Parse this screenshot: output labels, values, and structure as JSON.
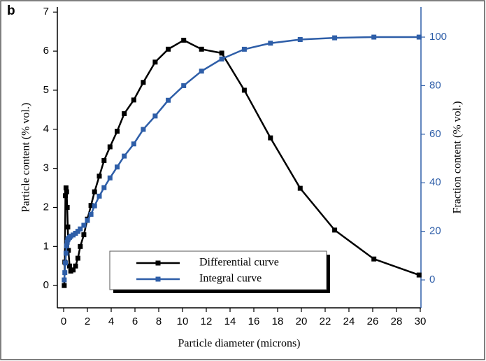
{
  "chart_data": {
    "type": "line",
    "panel_label": "b",
    "xlabel": "Particle diameter (microns)",
    "ylabel": "Particle content (% vol.)",
    "y2label": "Fraction content (% vol.)",
    "x": [
      0.05,
      0.1,
      0.15,
      0.2,
      0.25,
      0.3,
      0.35,
      0.4,
      0.5,
      0.6,
      0.8,
      1.0,
      1.2,
      1.4,
      1.7,
      2.0,
      2.3,
      2.6,
      3.0,
      3.4,
      3.9,
      4.5,
      5.1,
      5.9,
      6.7,
      7.7,
      8.8,
      10.1,
      11.6,
      13.3,
      15.2,
      17.4,
      19.9,
      22.8,
      26.1,
      29.9
    ],
    "series": [
      {
        "name": "Differential curve",
        "color": "#000000",
        "axis": "y",
        "values": [
          0,
          0.6,
          2.3,
          2.5,
          2.4,
          2.0,
          1.5,
          0.9,
          0.5,
          0.37,
          0.4,
          0.5,
          0.7,
          1.0,
          1.3,
          1.7,
          2.05,
          2.4,
          2.8,
          3.2,
          3.55,
          3.95,
          4.4,
          4.75,
          5.2,
          5.72,
          6.05,
          6.28,
          6.05,
          5.95,
          5.0,
          3.78,
          2.49,
          1.42,
          0.68,
          0.27
        ]
      },
      {
        "name": "Integral curve",
        "color": "#2e5ea8",
        "axis": "y2",
        "values": [
          0,
          3,
          7,
          11,
          14,
          15.5,
          16.5,
          17,
          17.5,
          18,
          18.5,
          19.2,
          20,
          21,
          22.5,
          24.5,
          27,
          30.5,
          34.5,
          38,
          42,
          46.5,
          51,
          56,
          62,
          67.5,
          74,
          80,
          86,
          91,
          95,
          97.5,
          99,
          99.7,
          100,
          100
        ]
      }
    ],
    "xlim": [
      -0.53,
      30.06
    ],
    "xticks": [
      0,
      2,
      4,
      6,
      8,
      10,
      12,
      14,
      16,
      18,
      20,
      22,
      24,
      26,
      28,
      30
    ],
    "ylim": [
      -0.57,
      7.13
    ],
    "yticks": [
      0,
      1,
      2,
      3,
      4,
      5,
      6,
      7
    ],
    "y2lim": [
      -11.5,
      112.4
    ],
    "y2ticks": [
      0,
      20,
      40,
      60,
      80,
      100
    ]
  }
}
